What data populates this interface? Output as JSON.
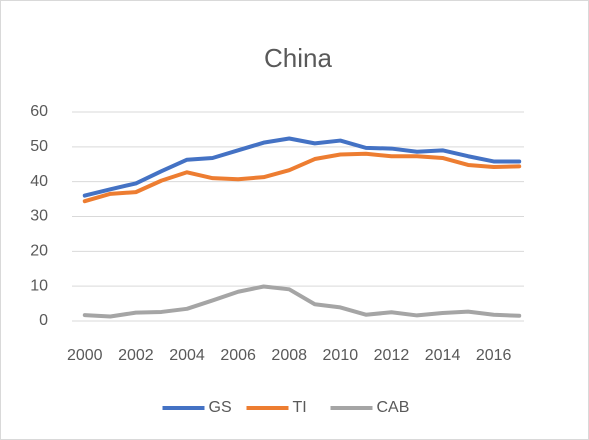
{
  "chart_data": {
    "type": "line",
    "title": "China",
    "categories": [
      "2000",
      null,
      "2002",
      null,
      "2004",
      null,
      "2006",
      null,
      "2008",
      null,
      "2010",
      null,
      "2012",
      null,
      "2014",
      null,
      "2016",
      null
    ],
    "series": [
      {
        "name": "GS",
        "color": "#4472c4",
        "values": [
          36,
          37.8,
          39.5,
          43,
          46.3,
          46.8,
          49,
          51.2,
          52.4,
          51,
          51.8,
          49.7,
          49.5,
          48.6,
          49,
          47.3,
          45.8,
          45.8
        ]
      },
      {
        "name": "TI",
        "color": "#ed7d31",
        "values": [
          34.4,
          36.5,
          37,
          40.3,
          42.7,
          41,
          40.7,
          41.3,
          43.3,
          46.5,
          47.8,
          48,
          47.3,
          47.3,
          46.8,
          44.8,
          44.2,
          44.4
        ]
      },
      {
        "name": "CAB",
        "color": "#a5a5a5",
        "values": [
          1.7,
          1.3,
          2.4,
          2.6,
          3.5,
          5.9,
          8.4,
          9.9,
          9.1,
          4.8,
          3.9,
          1.8,
          2.5,
          1.6,
          2.3,
          2.7,
          1.8,
          1.5
        ]
      }
    ],
    "ylim": [
      0,
      60
    ],
    "yticks": [
      0,
      10,
      20,
      30,
      40,
      50,
      60
    ],
    "grid": true,
    "legend": "bottom"
  }
}
